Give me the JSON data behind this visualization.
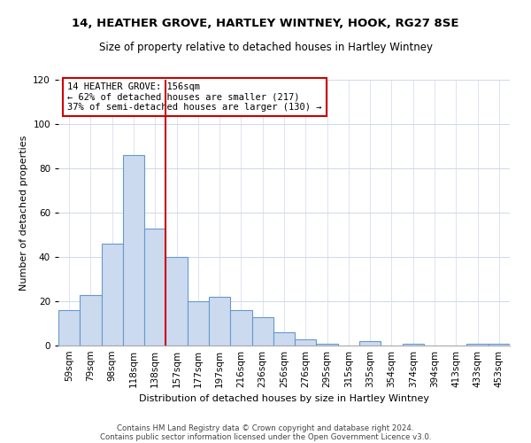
{
  "title": "14, HEATHER GROVE, HARTLEY WINTNEY, HOOK, RG27 8SE",
  "subtitle": "Size of property relative to detached houses in Hartley Wintney",
  "xlabel": "Distribution of detached houses by size in Hartley Wintney",
  "ylabel": "Number of detached properties",
  "bin_labels": [
    "59sqm",
    "79sqm",
    "98sqm",
    "118sqm",
    "138sqm",
    "157sqm",
    "177sqm",
    "197sqm",
    "216sqm",
    "236sqm",
    "256sqm",
    "276sqm",
    "295sqm",
    "315sqm",
    "335sqm",
    "354sqm",
    "374sqm",
    "394sqm",
    "413sqm",
    "433sqm",
    "453sqm"
  ],
  "bar_heights": [
    16,
    23,
    46,
    86,
    53,
    40,
    20,
    22,
    16,
    13,
    6,
    3,
    1,
    0,
    2,
    0,
    1,
    0,
    0,
    1,
    1
  ],
  "bar_color": "#ccdaf0",
  "bar_edge_color": "#6699cc",
  "vline_x_index": 5,
  "vline_color": "#cc0000",
  "annotation_text": "14 HEATHER GROVE: 156sqm\n← 62% of detached houses are smaller (217)\n37% of semi-detached houses are larger (130) →",
  "annotation_box_color": "#ffffff",
  "annotation_box_edge_color": "#cc0000",
  "ylim": [
    0,
    120
  ],
  "yticks": [
    0,
    20,
    40,
    60,
    80,
    100,
    120
  ],
  "footer_line1": "Contains HM Land Registry data © Crown copyright and database right 2024.",
  "footer_line2": "Contains public sector information licensed under the Open Government Licence v3.0.",
  "background_color": "#ffffff",
  "grid_color": "#d0d8e8",
  "title_fontsize": 9.5,
  "subtitle_fontsize": 8.5,
  "axis_label_fontsize": 8,
  "tick_fontsize": 7.5,
  "footer_fontsize": 6.2
}
